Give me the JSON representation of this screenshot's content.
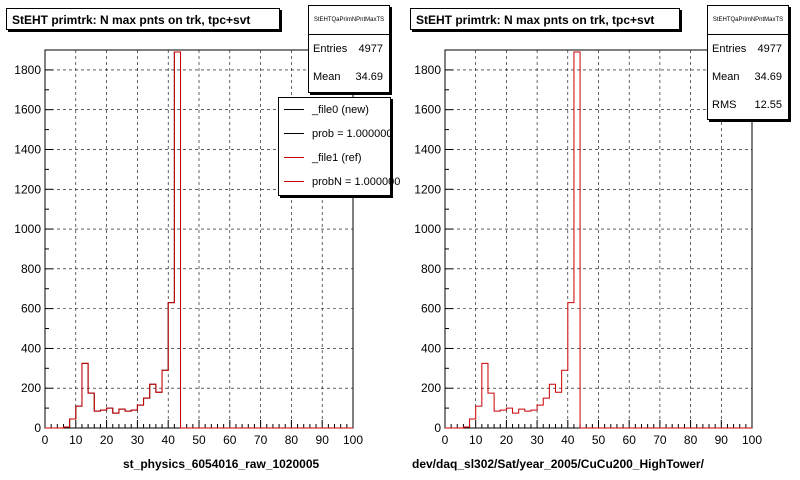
{
  "colors": {
    "new": "#000000",
    "ref": "#cc0000",
    "grid": "#000000"
  },
  "chart_data": [
    {
      "type": "bar",
      "title": "StEHT primtrk: N max pnts on trk, tpc+svt",
      "xlabel": "st_physics_6054016_raw_1020005",
      "ylabel": "",
      "xlim": [
        0,
        100
      ],
      "ylim": [
        0,
        1900
      ],
      "xticks": [
        "0",
        "10",
        "20",
        "30",
        "40",
        "50",
        "60",
        "70",
        "80",
        "90",
        "100"
      ],
      "yticks": [
        "0",
        "200",
        "400",
        "600",
        "800",
        "1000",
        "1200",
        "1400",
        "1600",
        "1800"
      ],
      "grid": true,
      "bin_width": 2,
      "x": [
        0,
        2,
        4,
        6,
        8,
        10,
        12,
        14,
        16,
        18,
        20,
        22,
        24,
        26,
        28,
        30,
        32,
        34,
        36,
        38,
        40,
        42,
        44,
        46,
        48,
        50
      ],
      "series": [
        {
          "name": "_file0 (new)",
          "values": [
            0,
            0,
            0,
            5,
            45,
            110,
            325,
            175,
            85,
            90,
            100,
            75,
            95,
            85,
            90,
            115,
            150,
            220,
            180,
            290,
            630,
            1890,
            0,
            0,
            0,
            0
          ]
        },
        {
          "name": "_file1 (ref)",
          "values": [
            0,
            0,
            0,
            5,
            45,
            110,
            325,
            175,
            85,
            90,
            100,
            75,
            95,
            85,
            90,
            115,
            150,
            220,
            180,
            290,
            630,
            1890,
            0,
            0,
            0,
            0
          ]
        }
      ],
      "stats": {
        "name": "StEHTQaPrimNPntMaxTS",
        "entries_label": "Entries",
        "entries": "4977",
        "mean_label": "Mean",
        "mean": "34.69"
      },
      "legend": {
        "position": "top-right",
        "entries": [
          {
            "label": "_file0 (new)",
            "color": "#000000"
          },
          {
            "label": "prob = 1.000000",
            "color": "#000000"
          },
          {
            "label": "_file1 (ref)",
            "color": "#cc0000"
          },
          {
            "label": "probN = 1.000000",
            "color": "#cc0000"
          }
        ]
      }
    },
    {
      "type": "bar",
      "title": "StEHT primtrk: N max pnts on trk, tpc+svt",
      "xlabel": "dev/daq_sl302/Sat/year_2005/CuCu200_HighTower/",
      "ylabel": "",
      "xlim": [
        0,
        100
      ],
      "ylim": [
        0,
        1900
      ],
      "xticks": [
        "0",
        "10",
        "20",
        "30",
        "40",
        "50",
        "60",
        "70",
        "80",
        "90",
        "100"
      ],
      "yticks": [
        "0",
        "200",
        "400",
        "600",
        "800",
        "1000",
        "1200",
        "1400",
        "1600",
        "1800"
      ],
      "grid": true,
      "bin_width": 2,
      "x": [
        0,
        2,
        4,
        6,
        8,
        10,
        12,
        14,
        16,
        18,
        20,
        22,
        24,
        26,
        28,
        30,
        32,
        34,
        36,
        38,
        40,
        42,
        44,
        46,
        48,
        50
      ],
      "series": [
        {
          "name": "",
          "values": [
            0,
            0,
            0,
            5,
            45,
            110,
            325,
            175,
            85,
            90,
            100,
            75,
            95,
            85,
            90,
            115,
            150,
            220,
            180,
            290,
            630,
            1890,
            0,
            0,
            0,
            0
          ]
        }
      ],
      "stats": {
        "name": "StEHTQaPrimNPntMaxTS",
        "entries_label": "Entries",
        "entries": "4977",
        "mean_label": "Mean",
        "mean": "34.69",
        "rms_label": "RMS",
        "rms": "12.55"
      }
    }
  ]
}
